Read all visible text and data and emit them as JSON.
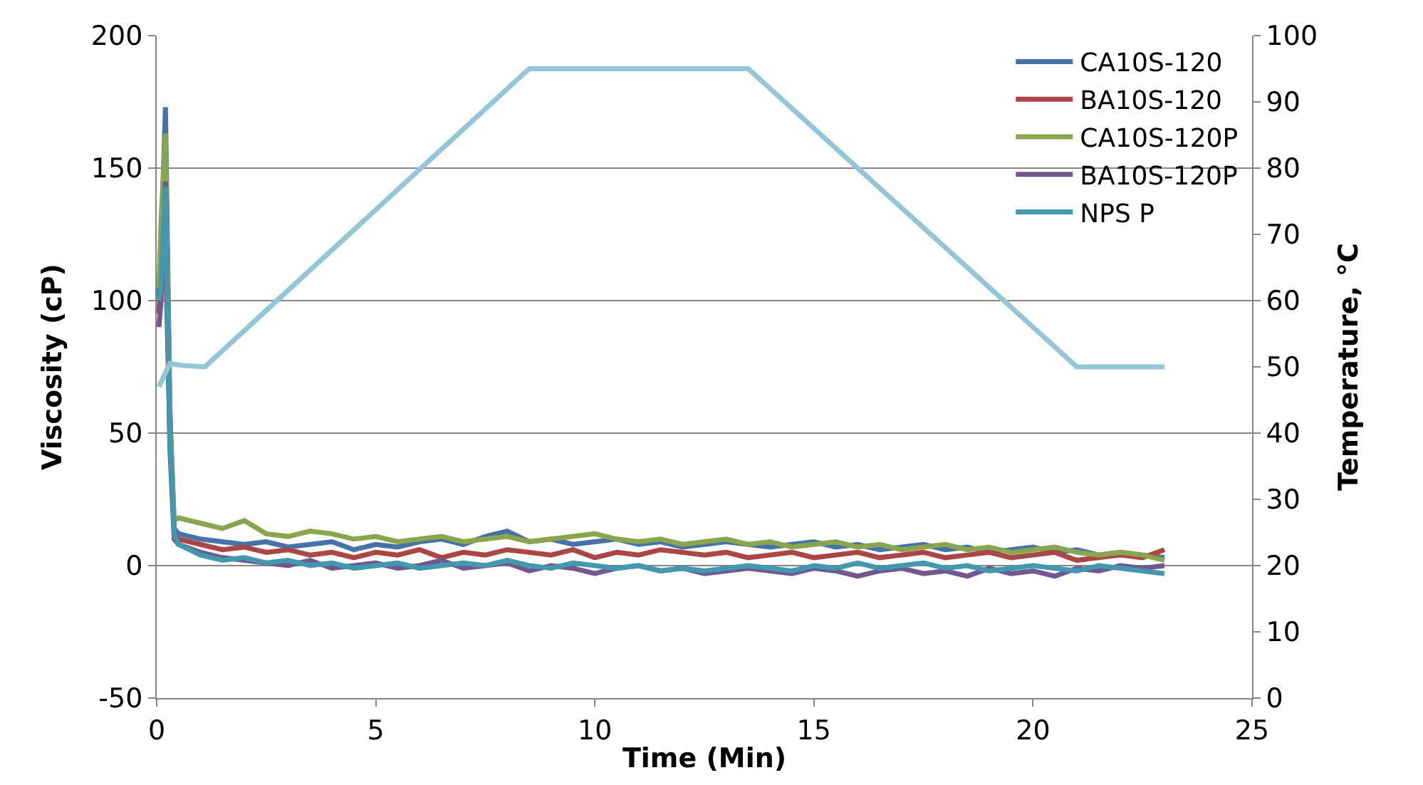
{
  "chart_data": {
    "type": "line",
    "xlabel": "Time (Min)",
    "ylabel": "Viscosity (cP)",
    "y2label": "Temperature, °C",
    "xlim": [
      0,
      25
    ],
    "xticks": [
      0,
      5,
      10,
      15,
      20,
      25
    ],
    "ylim": [
      -50,
      200
    ],
    "yticks": [
      -50,
      0,
      50,
      100,
      150,
      200
    ],
    "y2lim": [
      0,
      100
    ],
    "y2ticks": [
      0,
      10,
      20,
      30,
      40,
      50,
      60,
      70,
      80,
      90,
      100
    ],
    "grid": "y",
    "legend": "top right",
    "marker": "none",
    "line_style": "solid",
    "x": [
      0.05,
      0.1,
      0.2,
      0.3,
      0.4,
      0.5,
      1,
      1.5,
      2,
      2.5,
      3,
      3.5,
      4,
      4.5,
      5,
      5.5,
      6,
      6.5,
      7,
      7.5,
      8,
      8.5,
      9,
      9.5,
      10,
      10.5,
      11,
      11.5,
      12,
      12.5,
      13,
      13.5,
      14,
      14.5,
      15,
      15.5,
      16,
      16.5,
      17,
      17.5,
      18,
      18.5,
      19,
      19.5,
      20,
      20.5,
      21,
      21.5,
      22,
      22.5,
      23
    ],
    "series": [
      {
        "name": "CA10S-120",
        "color": "#4572a7",
        "values": [
          100,
          120,
          173,
          60,
          14,
          12,
          10,
          9,
          8,
          9,
          7,
          8,
          9,
          6,
          8,
          7,
          9,
          10,
          8,
          11,
          13,
          9,
          10,
          8,
          9,
          10,
          8,
          9,
          7,
          8,
          9,
          8,
          7,
          8,
          9,
          7,
          8,
          6,
          7,
          8,
          6,
          7,
          5,
          6,
          7,
          5,
          6,
          4,
          5,
          4,
          3
        ]
      },
      {
        "name": "BA10S-120",
        "color": "#aa4643",
        "values": [
          95,
          110,
          120,
          50,
          12,
          10,
          8,
          6,
          7,
          5,
          6,
          4,
          5,
          3,
          5,
          4,
          6,
          3,
          5,
          4,
          6,
          5,
          4,
          6,
          3,
          5,
          4,
          6,
          5,
          4,
          5,
          3,
          4,
          5,
          3,
          4,
          5,
          3,
          4,
          5,
          3,
          4,
          5,
          3,
          4,
          5,
          2,
          3,
          4,
          3,
          6
        ]
      },
      {
        "name": "CA10S-120P",
        "color": "#89a54e",
        "values": [
          105,
          130,
          163,
          55,
          17,
          18,
          16,
          14,
          17,
          12,
          11,
          13,
          12,
          10,
          11,
          9,
          10,
          11,
          9,
          10,
          11,
          9,
          10,
          11,
          12,
          10,
          9,
          10,
          8,
          9,
          10,
          8,
          9,
          7,
          8,
          9,
          7,
          8,
          6,
          7,
          8,
          6,
          7,
          5,
          6,
          7,
          5,
          4,
          5,
          4,
          2
        ]
      },
      {
        "name": "BA10S-120P",
        "color": "#71588f",
        "values": [
          90,
          100,
          145,
          45,
          10,
          8,
          5,
          3,
          2,
          1,
          0,
          2,
          -1,
          0,
          1,
          -1,
          0,
          2,
          -1,
          0,
          1,
          -2,
          0,
          -1,
          -3,
          -1,
          0,
          -2,
          -1,
          -3,
          -2,
          -1,
          -2,
          -3,
          -1,
          -2,
          -4,
          -2,
          -1,
          -3,
          -2,
          -4,
          -1,
          -3,
          -2,
          -4,
          -1,
          -2,
          0,
          -1,
          0
        ]
      },
      {
        "name": "NPS P",
        "color": "#4198af",
        "values": [
          100,
          105,
          143,
          50,
          12,
          8,
          4,
          2,
          3,
          1,
          2,
          0,
          1,
          -1,
          0,
          1,
          -1,
          0,
          1,
          0,
          2,
          0,
          -1,
          1,
          0,
          -1,
          0,
          -2,
          -1,
          -2,
          -1,
          0,
          -1,
          -2,
          0,
          -1,
          1,
          -1,
          0,
          1,
          -1,
          0,
          -2,
          -1,
          0,
          -1,
          -2,
          0,
          -1,
          -2,
          -3
        ]
      },
      {
        "color": "#93c6d6",
        "axis": "y2",
        "x": [
          0.05,
          0.3,
          0.6,
          1.1,
          8.5,
          9,
          11,
          13.5,
          21,
          21.5,
          23
        ],
        "values": [
          47,
          50.5,
          50.2,
          50,
          95,
          95,
          95,
          95,
          50,
          50,
          50
        ]
      }
    ]
  }
}
